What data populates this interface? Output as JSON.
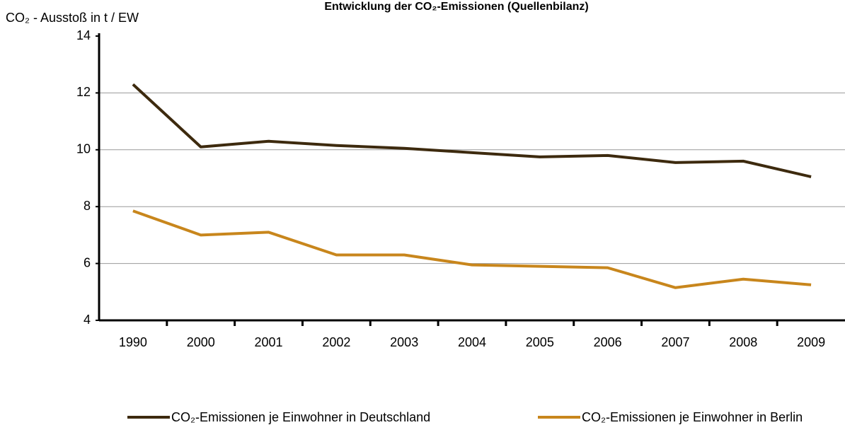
{
  "chart_data": {
    "type": "line",
    "title": "Entwicklung der CO₂-Emissionen (Quellenbilanz)",
    "y_label": "CO₂ - Ausstoß in t / EW",
    "categories": [
      "1990",
      "2000",
      "2001",
      "2002",
      "2003",
      "2004",
      "2005",
      "2006",
      "2007",
      "2008",
      "2009"
    ],
    "series": [
      {
        "name": "CO₂-Emissionen je Einwohner in Deutschland",
        "color": "#3d2a0e",
        "values": [
          12.3,
          10.1,
          10.3,
          10.15,
          10.05,
          9.9,
          9.75,
          9.8,
          9.55,
          9.6,
          9.05
        ]
      },
      {
        "name": "CO₂-Emissionen je Einwohner in Berlin",
        "color": "#c8861c",
        "values": [
          7.85,
          7.0,
          7.1,
          6.3,
          6.3,
          5.95,
          5.9,
          5.85,
          5.15,
          5.45,
          5.25
        ]
      }
    ],
    "ylim": [
      4,
      14
    ],
    "yticks": [
      4,
      6,
      8,
      10,
      12,
      14
    ],
    "grid": true,
    "legend": "bottom"
  }
}
